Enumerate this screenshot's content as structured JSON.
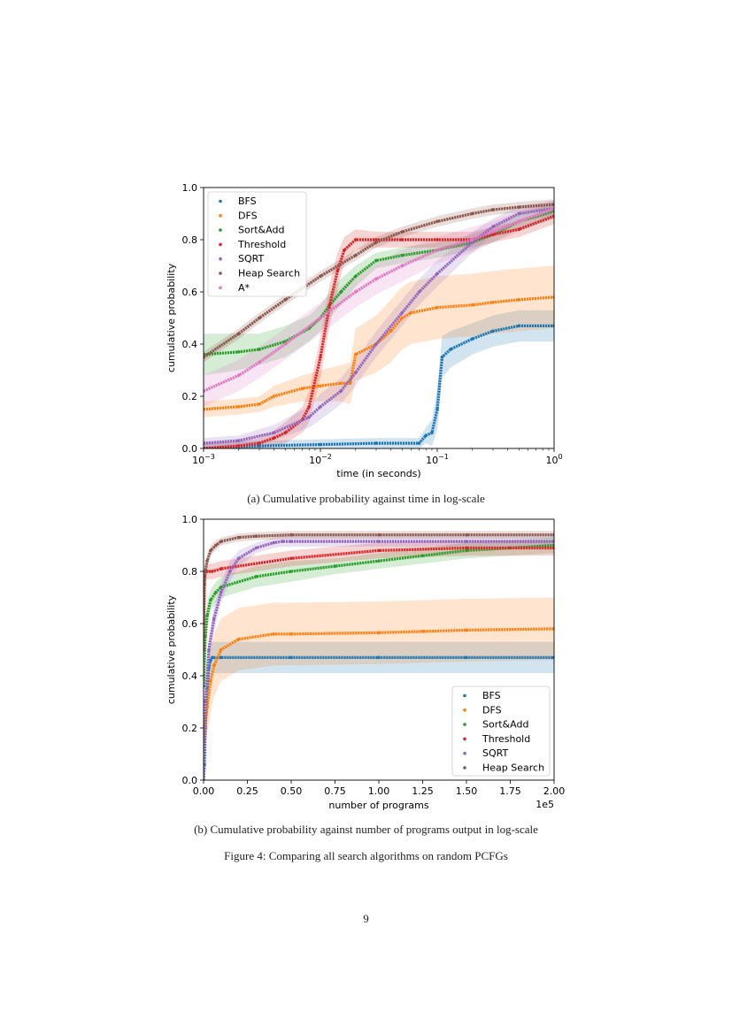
{
  "colors": {
    "BFS": "#1f77b4",
    "DFS": "#ff7f0e",
    "Sort&Add": "#2ca02c",
    "Threshold": "#d62728",
    "SQRT": "#9467bd",
    "Heap Search": "#8c564b",
    "A*": "#e377c2"
  },
  "chart_data": [
    {
      "type": "line",
      "subfigure": "a",
      "xscale": "log",
      "xlim": [
        0.001,
        1
      ],
      "ylim": [
        0,
        1
      ],
      "xlabel": "time (in seconds)",
      "ylabel": "cumulative probability",
      "xticks": [
        0.001,
        0.01,
        0.1,
        1
      ],
      "xtick_labels": [
        {
          "base": "10",
          "exp": "−3"
        },
        {
          "base": "10",
          "exp": "−2"
        },
        {
          "base": "10",
          "exp": "−1"
        },
        {
          "base": "10",
          "exp": "0"
        }
      ],
      "yticks": [
        "0.0",
        "0.2",
        "0.4",
        "0.6",
        "0.8",
        "1.0"
      ],
      "legend_position": "upper-left",
      "series": [
        {
          "name": "BFS",
          "x": [
            0.001,
            0.003,
            0.01,
            0.03,
            0.07,
            0.08,
            0.09,
            0.1,
            0.11,
            0.13,
            0.2,
            0.3,
            0.5,
            1
          ],
          "y": [
            0.0,
            0.01,
            0.015,
            0.02,
            0.02,
            0.05,
            0.06,
            0.15,
            0.35,
            0.38,
            0.42,
            0.45,
            0.47,
            0.47
          ],
          "band": [
            0.02,
            0.02,
            0.02,
            0.02,
            0.02,
            0.03,
            0.05,
            0.08,
            0.08,
            0.07,
            0.06,
            0.06,
            0.06,
            0.06
          ]
        },
        {
          "name": "DFS",
          "x": [
            0.001,
            0.002,
            0.003,
            0.004,
            0.007,
            0.01,
            0.015,
            0.018,
            0.02,
            0.03,
            0.04,
            0.05,
            0.06,
            0.1,
            0.2,
            0.3,
            0.5,
            1
          ],
          "y": [
            0.15,
            0.16,
            0.17,
            0.2,
            0.23,
            0.24,
            0.25,
            0.25,
            0.36,
            0.4,
            0.45,
            0.5,
            0.52,
            0.54,
            0.55,
            0.56,
            0.57,
            0.58
          ],
          "band": [
            0.03,
            0.03,
            0.03,
            0.04,
            0.05,
            0.06,
            0.07,
            0.08,
            0.1,
            0.11,
            0.12,
            0.12,
            0.12,
            0.12,
            0.12,
            0.12,
            0.12,
            0.12
          ]
        },
        {
          "name": "Sort&Add",
          "x": [
            0.001,
            0.002,
            0.003,
            0.005,
            0.008,
            0.01,
            0.012,
            0.015,
            0.02,
            0.03,
            0.05,
            0.1,
            0.2,
            0.3,
            0.5,
            1
          ],
          "y": [
            0.36,
            0.37,
            0.38,
            0.41,
            0.46,
            0.5,
            0.55,
            0.6,
            0.66,
            0.72,
            0.74,
            0.76,
            0.79,
            0.82,
            0.87,
            0.91
          ],
          "band": [
            0.08,
            0.07,
            0.06,
            0.06,
            0.05,
            0.05,
            0.05,
            0.05,
            0.04,
            0.03,
            0.03,
            0.03,
            0.03,
            0.03,
            0.03,
            0.03
          ]
        },
        {
          "name": "Threshold",
          "x": [
            0.001,
            0.002,
            0.003,
            0.004,
            0.005,
            0.007,
            0.008,
            0.01,
            0.012,
            0.014,
            0.016,
            0.02,
            0.03,
            0.05,
            0.1,
            0.2,
            0.3,
            0.5,
            1
          ],
          "y": [
            0.0,
            0.01,
            0.02,
            0.04,
            0.06,
            0.11,
            0.16,
            0.35,
            0.55,
            0.68,
            0.76,
            0.8,
            0.8,
            0.8,
            0.8,
            0.8,
            0.82,
            0.84,
            0.89
          ],
          "band": [
            0.02,
            0.02,
            0.02,
            0.03,
            0.04,
            0.05,
            0.06,
            0.08,
            0.08,
            0.07,
            0.05,
            0.04,
            0.03,
            0.03,
            0.03,
            0.03,
            0.03,
            0.03,
            0.03
          ]
        },
        {
          "name": "SQRT",
          "x": [
            0.001,
            0.002,
            0.004,
            0.008,
            0.01,
            0.015,
            0.02,
            0.03,
            0.05,
            0.07,
            0.1,
            0.2,
            0.3,
            0.5,
            1
          ],
          "y": [
            0.02,
            0.03,
            0.06,
            0.12,
            0.16,
            0.22,
            0.29,
            0.4,
            0.52,
            0.6,
            0.67,
            0.79,
            0.85,
            0.9,
            0.92
          ],
          "band": [
            0.02,
            0.02,
            0.03,
            0.04,
            0.05,
            0.05,
            0.05,
            0.05,
            0.05,
            0.05,
            0.05,
            0.04,
            0.03,
            0.03,
            0.03
          ]
        },
        {
          "name": "Heap Search",
          "x": [
            0.001,
            0.002,
            0.003,
            0.005,
            0.01,
            0.02,
            0.03,
            0.05,
            0.1,
            0.2,
            0.3,
            0.5,
            1
          ],
          "y": [
            0.35,
            0.44,
            0.5,
            0.57,
            0.66,
            0.74,
            0.79,
            0.83,
            0.87,
            0.9,
            0.915,
            0.925,
            0.935
          ],
          "band": [
            0.02,
            0.02,
            0.02,
            0.02,
            0.02,
            0.02,
            0.02,
            0.02,
            0.02,
            0.02,
            0.02,
            0.02,
            0.02
          ]
        },
        {
          "name": "A*",
          "x": [
            0.001,
            0.002,
            0.003,
            0.005,
            0.01,
            0.02,
            0.03,
            0.05,
            0.1,
            0.2,
            0.3,
            0.5,
            1
          ],
          "y": [
            0.22,
            0.28,
            0.33,
            0.4,
            0.5,
            0.6,
            0.65,
            0.7,
            0.76,
            0.8,
            0.83,
            0.87,
            0.92
          ],
          "band": [
            0.06,
            0.06,
            0.06,
            0.06,
            0.06,
            0.06,
            0.06,
            0.06,
            0.05,
            0.05,
            0.04,
            0.04,
            0.03
          ]
        }
      ]
    },
    {
      "type": "line",
      "subfigure": "b",
      "xscale": "linear",
      "xlim": [
        0,
        2.0
      ],
      "ylim": [
        0,
        1
      ],
      "xlabel": "number of programs",
      "ylabel": "cumulative probability",
      "x_offset_label": "1e5",
      "xticks": [
        "0.00",
        "0.25",
        "0.50",
        "0.75",
        "1.00",
        "1.25",
        "1.50",
        "1.75",
        "2.00"
      ],
      "yticks": [
        "0.0",
        "0.2",
        "0.4",
        "0.6",
        "0.8",
        "1.0"
      ],
      "legend_position": "lower-right",
      "series": [
        {
          "name": "BFS",
          "x": [
            0,
            0.005,
            0.01,
            0.02,
            0.03,
            0.04,
            0.05,
            0.1,
            0.5,
            1.0,
            1.5,
            2.0
          ],
          "y": [
            0.0,
            0.06,
            0.2,
            0.35,
            0.43,
            0.46,
            0.47,
            0.47,
            0.47,
            0.47,
            0.47,
            0.47
          ],
          "band": [
            0.02,
            0.03,
            0.04,
            0.06,
            0.06,
            0.06,
            0.06,
            0.06,
            0.06,
            0.06,
            0.06,
            0.06
          ]
        },
        {
          "name": "DFS",
          "x": [
            0,
            0.01,
            0.02,
            0.04,
            0.06,
            0.1,
            0.2,
            0.4,
            0.5,
            1.0,
            1.25,
            1.5,
            2.0
          ],
          "y": [
            0.15,
            0.22,
            0.28,
            0.38,
            0.44,
            0.5,
            0.54,
            0.56,
            0.56,
            0.565,
            0.57,
            0.575,
            0.58
          ],
          "band": [
            0.06,
            0.08,
            0.1,
            0.12,
            0.12,
            0.12,
            0.12,
            0.12,
            0.12,
            0.12,
            0.12,
            0.12,
            0.12
          ]
        },
        {
          "name": "Sort&Add",
          "x": [
            0,
            0.01,
            0.02,
            0.04,
            0.07,
            0.1,
            0.3,
            0.5,
            0.75,
            1.0,
            1.25,
            1.5,
            1.75,
            2.0
          ],
          "y": [
            0.36,
            0.55,
            0.63,
            0.69,
            0.72,
            0.74,
            0.78,
            0.8,
            0.82,
            0.84,
            0.86,
            0.88,
            0.89,
            0.9
          ],
          "band": [
            0.07,
            0.06,
            0.05,
            0.04,
            0.04,
            0.04,
            0.04,
            0.04,
            0.03,
            0.03,
            0.03,
            0.03,
            0.03,
            0.03
          ]
        },
        {
          "name": "Threshold",
          "x": [
            0,
            0.005,
            0.01,
            0.02,
            0.05,
            0.1,
            0.5,
            1.0,
            1.5,
            2.0
          ],
          "y": [
            0.6,
            0.78,
            0.8,
            0.8,
            0.8,
            0.81,
            0.85,
            0.88,
            0.89,
            0.89
          ],
          "band": [
            0.04,
            0.03,
            0.03,
            0.03,
            0.03,
            0.03,
            0.03,
            0.03,
            0.03,
            0.03
          ]
        },
        {
          "name": "SQRT",
          "x": [
            0,
            0.01,
            0.03,
            0.06,
            0.1,
            0.15,
            0.2,
            0.3,
            0.4,
            0.45,
            0.5,
            1.0,
            1.5,
            2.0
          ],
          "y": [
            0.0,
            0.3,
            0.5,
            0.62,
            0.72,
            0.8,
            0.85,
            0.89,
            0.91,
            0.915,
            0.915,
            0.915,
            0.915,
            0.915
          ],
          "band": [
            0.02,
            0.04,
            0.05,
            0.05,
            0.04,
            0.04,
            0.03,
            0.02,
            0.02,
            0.02,
            0.02,
            0.02,
            0.02,
            0.02
          ]
        },
        {
          "name": "Heap Search",
          "x": [
            0,
            0.005,
            0.01,
            0.02,
            0.04,
            0.07,
            0.1,
            0.2,
            0.3,
            0.5,
            1.0,
            1.5,
            2.0
          ],
          "y": [
            0.5,
            0.75,
            0.8,
            0.84,
            0.88,
            0.9,
            0.915,
            0.93,
            0.935,
            0.94,
            0.94,
            0.94,
            0.94
          ],
          "band": [
            0.02,
            0.02,
            0.02,
            0.02,
            0.02,
            0.02,
            0.015,
            0.015,
            0.015,
            0.015,
            0.015,
            0.015,
            0.015
          ]
        }
      ]
    }
  ],
  "captions": {
    "a": "(a) Cumulative probability against time in log-scale",
    "b": "(b) Cumulative probability against number of programs output in log-scale",
    "figure": "Figure 4: Comparing all search algorithms on random PCFGs"
  },
  "page_number": "9"
}
